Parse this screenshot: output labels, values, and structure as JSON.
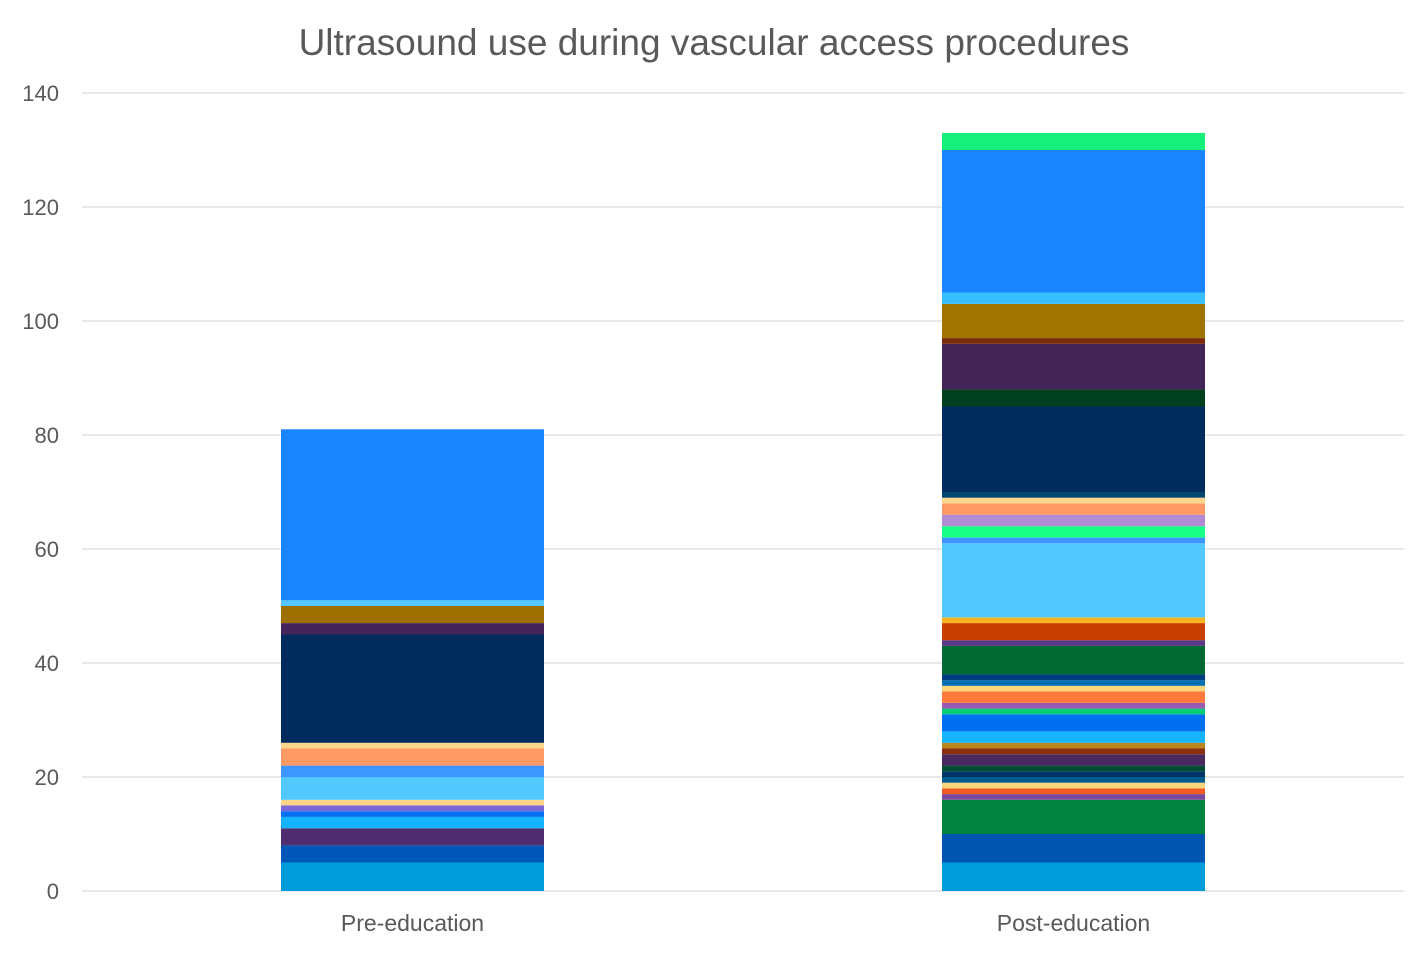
{
  "chart_data": {
    "type": "bar",
    "stacked": true,
    "title": "Ultrasound use during vascular access procedures",
    "xlabel": "",
    "ylabel": "",
    "ylim": [
      0,
      140
    ],
    "yticks": [
      0,
      20,
      40,
      60,
      80,
      100,
      120,
      140
    ],
    "grid": true,
    "legend": "none",
    "categories": [
      "Pre-education",
      "Post-education"
    ],
    "totals": [
      81,
      133
    ],
    "stacks": [
      [
        {
          "value": 5,
          "color": "#009cdc"
        },
        {
          "value": 3,
          "color": "#0057b8"
        },
        {
          "value": 3,
          "color": "#4f2d6e"
        },
        {
          "value": 2,
          "color": "#14b4ff"
        },
        {
          "value": 1,
          "color": "#0070f0"
        },
        {
          "value": 1,
          "color": "#7b68d8"
        },
        {
          "value": 1,
          "color": "#fad48a"
        },
        {
          "value": 4,
          "color": "#52c8ff"
        },
        {
          "value": 2,
          "color": "#3d96ff"
        },
        {
          "value": 3,
          "color": "#ff9966"
        },
        {
          "value": 1,
          "color": "#fbd68c"
        },
        {
          "value": 19,
          "color": "#002b5c"
        },
        {
          "value": 2,
          "color": "#45245c"
        },
        {
          "value": 3,
          "color": "#9e7000"
        },
        {
          "value": 1,
          "color": "#52c8ff"
        },
        {
          "value": 30,
          "color": "#1a85ff"
        }
      ],
      [
        {
          "value": 5,
          "color": "#009cdc"
        },
        {
          "value": 5,
          "color": "#0055b0"
        },
        {
          "value": 6,
          "color": "#00833f"
        },
        {
          "value": 1,
          "color": "#7b4aa0"
        },
        {
          "value": 1,
          "color": "#f05a23"
        },
        {
          "value": 1,
          "color": "#fcd47c"
        },
        {
          "value": 1,
          "color": "#005c8c"
        },
        {
          "value": 1,
          "color": "#003366"
        },
        {
          "value": 1,
          "color": "#004d33"
        },
        {
          "value": 2,
          "color": "#4a2860"
        },
        {
          "value": 1,
          "color": "#8c3010"
        },
        {
          "value": 1,
          "color": "#b8861a"
        },
        {
          "value": 2,
          "color": "#14b4ff"
        },
        {
          "value": 3,
          "color": "#0070f0"
        },
        {
          "value": 1,
          "color": "#00cc77"
        },
        {
          "value": 1,
          "color": "#9b59b6"
        },
        {
          "value": 2,
          "color": "#ff7a3d"
        },
        {
          "value": 1,
          "color": "#fcd47c"
        },
        {
          "value": 1,
          "color": "#0070b0"
        },
        {
          "value": 1,
          "color": "#003c80"
        },
        {
          "value": 5,
          "color": "#006934"
        },
        {
          "value": 1,
          "color": "#5a3888"
        },
        {
          "value": 3,
          "color": "#c84000"
        },
        {
          "value": 1,
          "color": "#fbb520"
        },
        {
          "value": 13,
          "color": "#52c8ff"
        },
        {
          "value": 1,
          "color": "#3d96ff"
        },
        {
          "value": 2,
          "color": "#1aff88"
        },
        {
          "value": 2,
          "color": "#b38ad4"
        },
        {
          "value": 2,
          "color": "#ff9966"
        },
        {
          "value": 1,
          "color": "#fbd68c"
        },
        {
          "value": 1,
          "color": "#00476b"
        },
        {
          "value": 15,
          "color": "#002b5c"
        },
        {
          "value": 3,
          "color": "#00401f"
        },
        {
          "value": 8,
          "color": "#432457"
        },
        {
          "value": 1,
          "color": "#7a2a0a"
        },
        {
          "value": 6,
          "color": "#a07400"
        },
        {
          "value": 2,
          "color": "#38bfff"
        },
        {
          "value": 25,
          "color": "#1a85ff"
        },
        {
          "value": 3,
          "color": "#14f07a"
        }
      ]
    ]
  }
}
